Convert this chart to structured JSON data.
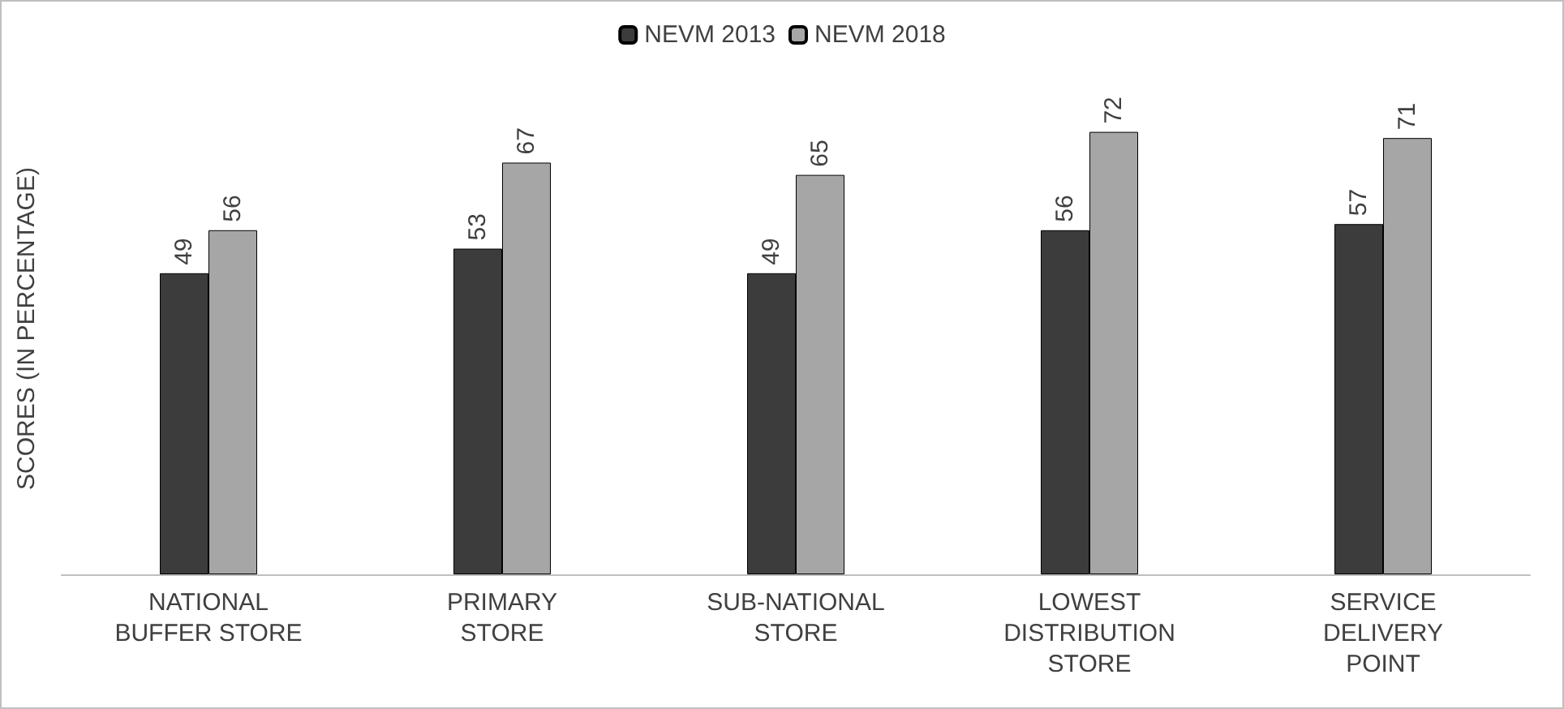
{
  "chart_data": {
    "type": "bar",
    "ylabel": "SCORES (IN PERCENTAGE)",
    "categories": [
      "NATIONAL\nBUFFER STORE",
      "PRIMARY\nSTORE",
      "SUB-NATIONAL\nSTORE",
      "LOWEST\nDISTRIBUTION\nSTORE",
      "SERVICE\nDELIVERY\nPOINT"
    ],
    "series": [
      {
        "name": "NEVM 2013",
        "color": "#3c3c3c",
        "values": [
          49,
          53,
          49,
          56,
          57
        ]
      },
      {
        "name": "NEVM 2018",
        "color": "#a6a6a6",
        "values": [
          56,
          67,
          65,
          72,
          71
        ]
      }
    ],
    "data_labels": true,
    "legend": "top",
    "grid": false
  }
}
